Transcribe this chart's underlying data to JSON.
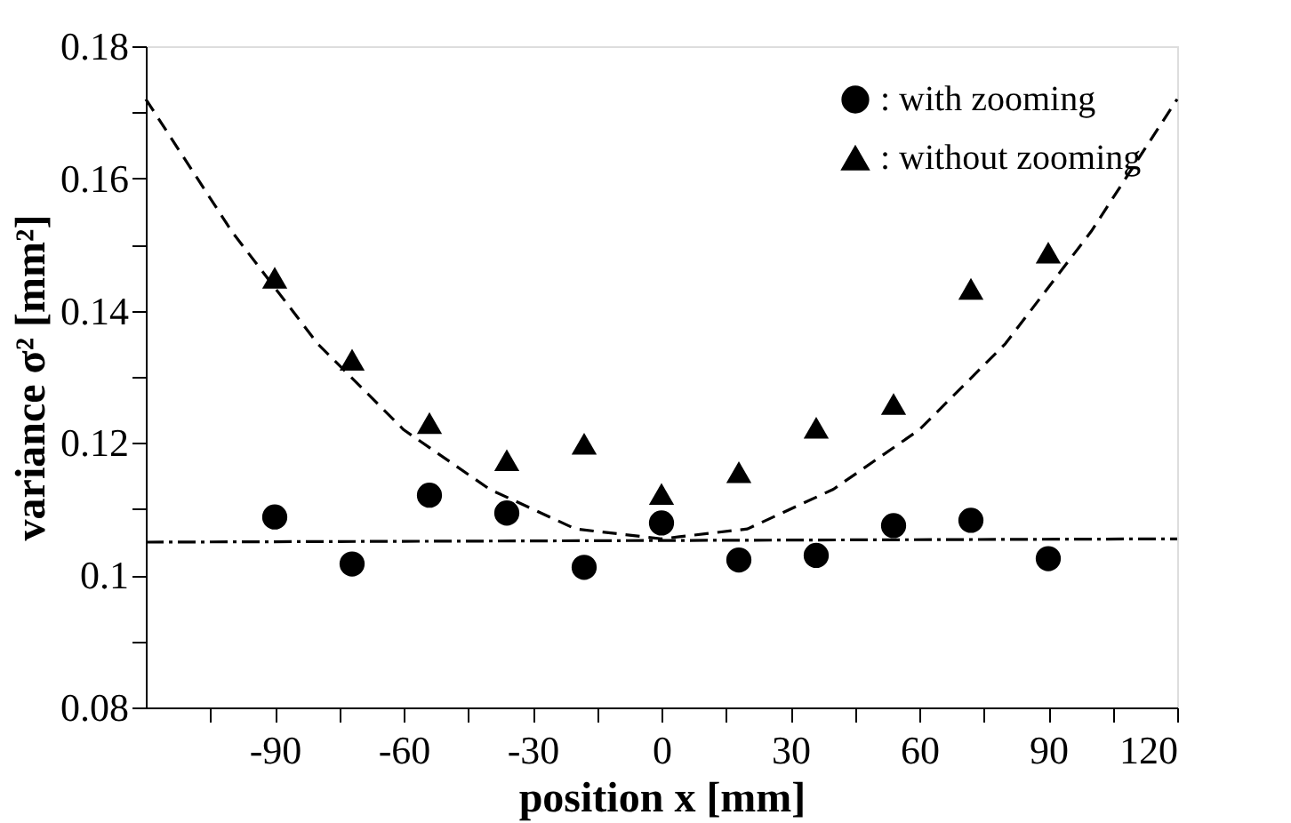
{
  "chart_data": {
    "type": "scatter",
    "xlabel": "position x      [mm]",
    "ylabel": "variance σ² [mm²]",
    "xlim": [
      -120,
      120
    ],
    "xticks": [
      {
        "value": -105,
        "label": null
      },
      -90,
      {
        "value": -75,
        "label": null
      },
      -60,
      {
        "value": -45,
        "label": null
      },
      -30,
      {
        "value": -15,
        "label": null
      },
      0,
      {
        "value": 15,
        "label": null
      },
      30,
      {
        "value": 45,
        "label": null
      },
      60,
      {
        "value": 75,
        "label": null
      },
      90,
      {
        "value": 105,
        "label": null
      },
      120
    ],
    "ylim": [
      0.08,
      0.18
    ],
    "yticks": [
      0.08,
      {
        "value": 0.09,
        "label": null
      },
      0.1,
      {
        "value": 0.11,
        "label": null
      },
      0.12,
      {
        "value": 0.13,
        "label": null
      },
      0.14,
      {
        "value": 0.15,
        "label": null
      },
      0.16,
      {
        "value": 0.17,
        "label": null
      },
      0.18
    ],
    "grid": false,
    "legend": "top right",
    "series": [
      {
        "name": ": with zooming",
        "marker": "circle",
        "color": "#000000",
        "x": [
          -90,
          -72,
          -54,
          -36,
          -18,
          0,
          18,
          36,
          54,
          72,
          90
        ],
        "values": [
          0.1088,
          0.1017,
          0.1121,
          0.1094,
          0.1012,
          0.1079,
          0.1023,
          0.103,
          0.1075,
          0.1083,
          0.1025
        ]
      },
      {
        "name": ": without zooming",
        "marker": "triangle",
        "color": "#000000",
        "x": [
          -90,
          -72,
          -54,
          -36,
          -18,
          0,
          18,
          36,
          54,
          72,
          90
        ],
        "values": [
          0.145,
          0.1326,
          0.123,
          0.1174,
          0.1199,
          0.1123,
          0.1156,
          0.1223,
          0.1259,
          0.1433,
          0.1488
        ]
      },
      {
        "type": "line",
        "line_style": "dashed",
        "color": "#000000",
        "x": [
          -120,
          -100,
          -80,
          -60,
          -40,
          -20,
          0,
          20,
          40,
          60,
          80,
          100,
          120
        ],
        "values": [
          0.172,
          0.152,
          0.135,
          0.122,
          0.113,
          0.107,
          0.1055,
          0.107,
          0.113,
          0.122,
          0.135,
          0.152,
          0.172
        ]
      },
      {
        "type": "line",
        "line_style": "dashdot",
        "color": "#000000",
        "x": [
          -120,
          120
        ],
        "values": [
          0.105,
          0.1055
        ]
      }
    ]
  }
}
